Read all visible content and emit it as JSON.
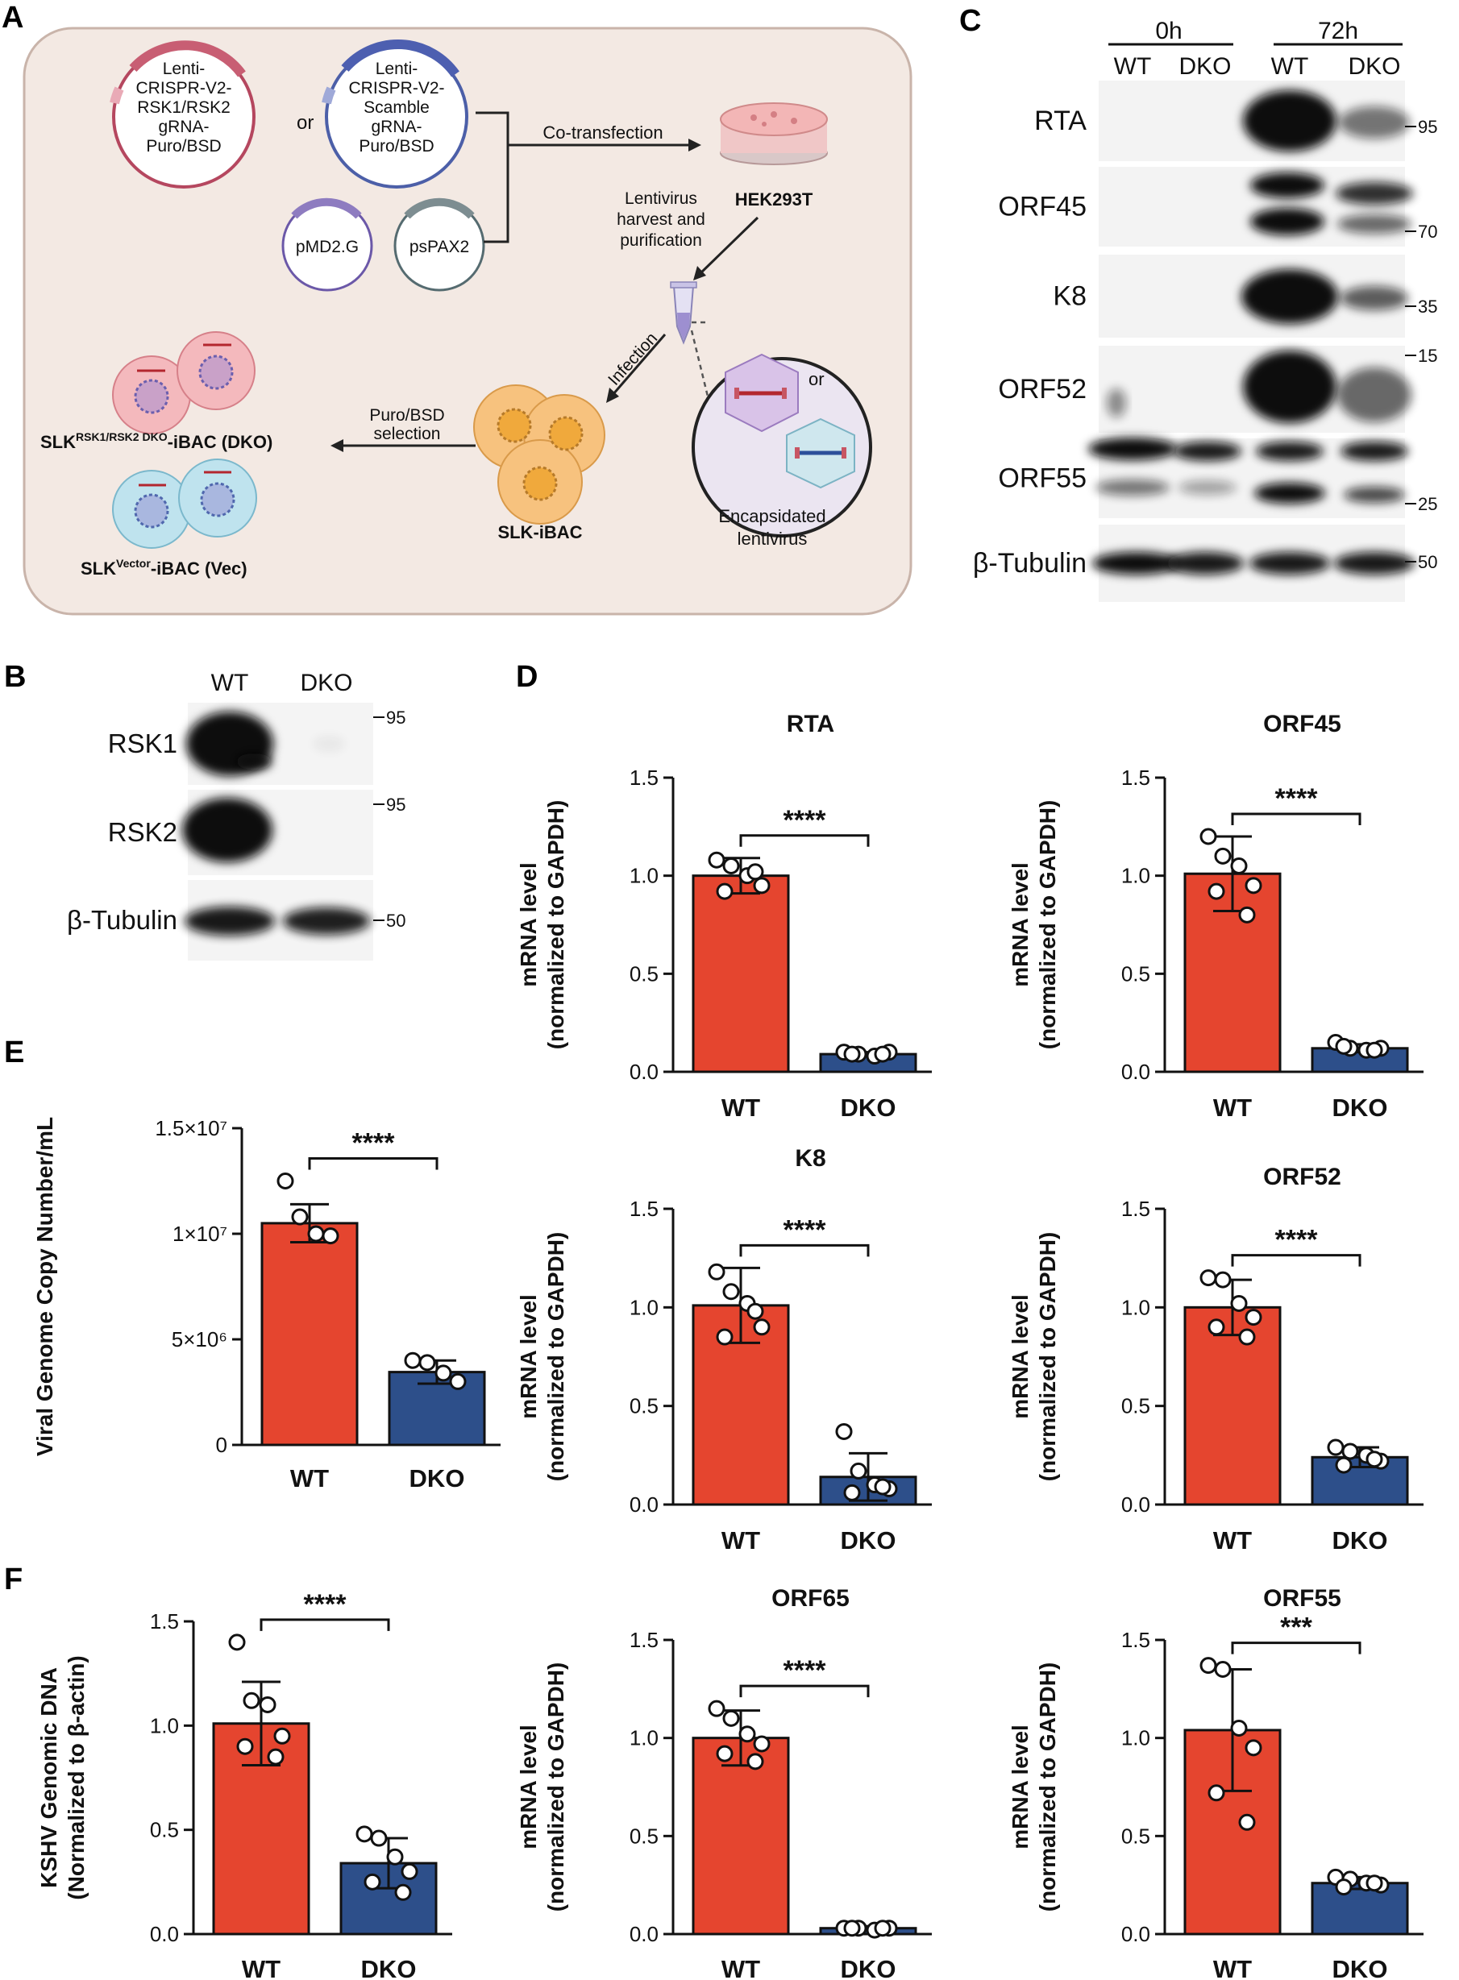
{
  "panels": {
    "A": "A",
    "B": "B",
    "C": "C",
    "D": "D",
    "E": "E",
    "F": "F"
  },
  "schematic": {
    "plasmid_rsk": "Lenti-\nCRISPR-V2-\nRSK1/RSK2\ngRNA-\nPuro/BSD",
    "or1": "or",
    "plasmid_scramble": "Lenti-\nCRISPR-V2-\nScamble\ngRNA-\nPuro/BSD",
    "pmd2g": "pMD2.G",
    "pspax2": "psPAX2",
    "cotransfection": "Co-transfection",
    "hek": "HEK293T",
    "harvest": "Lentivirus\nharvest and\npurification",
    "infection": "Infection",
    "or2": "or",
    "encapsidated": "Encapsidated\nlentivirus",
    "slk_ibac": "SLK-iBAC",
    "selection": "Puro/BSD\nselection",
    "dko_label_main": "SLK",
    "dko_label_sup": "RSK1/RSK2 DKO",
    "dko_label_end": "-iBAC (DKO)",
    "vec_label_main": "SLK",
    "vec_label_sup": "Vector",
    "vec_label_end": "-iBAC (Vec)",
    "colors": {
      "panel_bg": "#f3e9e3",
      "panel_border": "#c9b4aa",
      "red_cell": "#f4b9bd",
      "blue_cell": "#bfe3ee",
      "orange_cell": "#f7c27e",
      "dish": "#f3b6b6"
    }
  },
  "blot_B": {
    "lanes": [
      "WT",
      "DKO"
    ],
    "rows": [
      {
        "label": "RSK1",
        "marker": "95"
      },
      {
        "label": "RSK2",
        "marker": "95"
      },
      {
        "label": "β-Tubulin",
        "marker": "50"
      }
    ]
  },
  "blot_C": {
    "timepoints": [
      "0h",
      "72h"
    ],
    "lanes": [
      "WT",
      "DKO",
      "WT",
      "DKO"
    ],
    "rows": [
      {
        "label": "RTA",
        "marker": "95"
      },
      {
        "label": "ORF45",
        "marker": "70"
      },
      {
        "label": "K8",
        "marker": "35"
      },
      {
        "label": "ORF52",
        "marker": "15"
      },
      {
        "label": "ORF55",
        "marker": "25"
      },
      {
        "label": "β-Tubulin",
        "marker": "50"
      }
    ]
  },
  "chart_data": [
    {
      "id": "D-RTA",
      "type": "bar",
      "title": "RTA",
      "ylabel": "mRNA level\n(normalized to GAPDH)",
      "categories": [
        "WT",
        "DKO"
      ],
      "values": [
        1.0,
        0.09
      ],
      "errors": [
        0.09,
        0.01
      ],
      "points": [
        [
          1.08,
          1.05,
          1.0,
          0.95,
          0.92,
          1.02
        ],
        [
          0.1,
          0.09,
          0.08,
          0.1,
          0.09,
          0.09
        ]
      ],
      "ylim": [
        0,
        1.5
      ],
      "yticks": [
        "0.0",
        "0.5",
        "1.0",
        "1.5"
      ],
      "sig": "****"
    },
    {
      "id": "D-ORF45",
      "type": "bar",
      "title": "ORF45",
      "ylabel": "mRNA level\n(normalized to GAPDH)",
      "categories": [
        "WT",
        "DKO"
      ],
      "values": [
        1.01,
        0.12
      ],
      "errors": [
        0.19,
        0.02
      ],
      "points": [
        [
          1.2,
          1.1,
          1.05,
          0.95,
          0.92,
          0.8
        ],
        [
          0.15,
          0.12,
          0.11,
          0.12,
          0.13,
          0.11
        ]
      ],
      "ylim": [
        0,
        1.5
      ],
      "yticks": [
        "0.0",
        "0.5",
        "1.0",
        "1.5"
      ],
      "sig": "****"
    },
    {
      "id": "D-K8",
      "type": "bar",
      "title": "K8",
      "ylabel": "mRNA level\n(normalized to GAPDH)",
      "categories": [
        "WT",
        "DKO"
      ],
      "values": [
        1.01,
        0.14
      ],
      "errors": [
        0.19,
        0.12
      ],
      "points": [
        [
          1.18,
          1.08,
          1.02,
          0.9,
          0.85,
          0.98
        ],
        [
          0.37,
          0.17,
          0.1,
          0.08,
          0.06,
          0.09
        ]
      ],
      "ylim": [
        0,
        1.5
      ],
      "yticks": [
        "0.0",
        "0.5",
        "1.0",
        "1.5"
      ],
      "sig": "****"
    },
    {
      "id": "D-ORF52",
      "type": "bar",
      "title": "ORF52",
      "ylabel": "mRNA level\n(normalized to GAPDH)",
      "categories": [
        "WT",
        "DKO"
      ],
      "values": [
        1.0,
        0.24
      ],
      "errors": [
        0.14,
        0.05
      ],
      "points": [
        [
          1.15,
          1.14,
          1.02,
          0.95,
          0.9,
          0.85
        ],
        [
          0.29,
          0.27,
          0.25,
          0.22,
          0.2,
          0.23
        ]
      ],
      "ylim": [
        0,
        1.5
      ],
      "yticks": [
        "0.0",
        "0.5",
        "1.0",
        "1.5"
      ],
      "sig": "****"
    },
    {
      "id": "D-ORF65",
      "type": "bar",
      "title": "ORF65",
      "ylabel": "mRNA level\n(normalized to GAPDH)",
      "categories": [
        "WT",
        "DKO"
      ],
      "values": [
        1.0,
        0.03
      ],
      "errors": [
        0.14,
        0.01
      ],
      "points": [
        [
          1.15,
          1.1,
          1.02,
          0.97,
          0.92,
          0.88
        ],
        [
          0.03,
          0.03,
          0.02,
          0.03,
          0.03,
          0.03
        ]
      ],
      "ylim": [
        0,
        1.5
      ],
      "yticks": [
        "0.0",
        "0.5",
        "1.0",
        "1.5"
      ],
      "sig": "****"
    },
    {
      "id": "D-ORF55",
      "type": "bar",
      "title": "ORF55",
      "ylabel": "mRNA level\n(normalized to GAPDH)",
      "categories": [
        "WT",
        "DKO"
      ],
      "values": [
        1.04,
        0.26
      ],
      "errors": [
        0.31,
        0.03
      ],
      "points": [
        [
          1.37,
          1.35,
          1.05,
          0.95,
          0.72,
          0.57
        ],
        [
          0.29,
          0.28,
          0.26,
          0.25,
          0.24,
          0.26
        ]
      ],
      "ylim": [
        0,
        1.5
      ],
      "yticks": [
        "0.0",
        "0.5",
        "1.0",
        "1.5"
      ],
      "sig": "***"
    },
    {
      "id": "E",
      "type": "bar",
      "title": "",
      "ylabel": "Viral Genome Copy Number/mL",
      "categories": [
        "WT",
        "DKO"
      ],
      "values": [
        10500000,
        3450000
      ],
      "errors": [
        900000,
        550000
      ],
      "points": [
        [
          12500000,
          10800000,
          10000000,
          9900000
        ],
        [
          4000000,
          3900000,
          3400000,
          3000000
        ]
      ],
      "ylim": [
        0,
        15000000
      ],
      "yticks": [
        "0",
        "5×10⁶",
        "1×10⁷",
        "1.5×10⁷"
      ],
      "sig": "****"
    },
    {
      "id": "F",
      "type": "bar",
      "title": "",
      "ylabel": "KSHV Genomic  DNA\n(Normalized to β-actin)",
      "categories": [
        "WT",
        "DKO"
      ],
      "values": [
        1.01,
        0.34
      ],
      "errors": [
        0.2,
        0.12
      ],
      "points": [
        [
          1.4,
          1.12,
          1.1,
          0.95,
          0.9,
          0.85
        ],
        [
          0.48,
          0.46,
          0.37,
          0.3,
          0.25,
          0.2
        ]
      ],
      "ylim": [
        0,
        1.5
      ],
      "yticks": [
        "0.0",
        "0.5",
        "1.0",
        "1.5"
      ],
      "sig": "****"
    }
  ],
  "colors": {
    "wt_bar": "#e5452f",
    "dko_bar": "#2d4f8a",
    "axis": "#111111"
  }
}
